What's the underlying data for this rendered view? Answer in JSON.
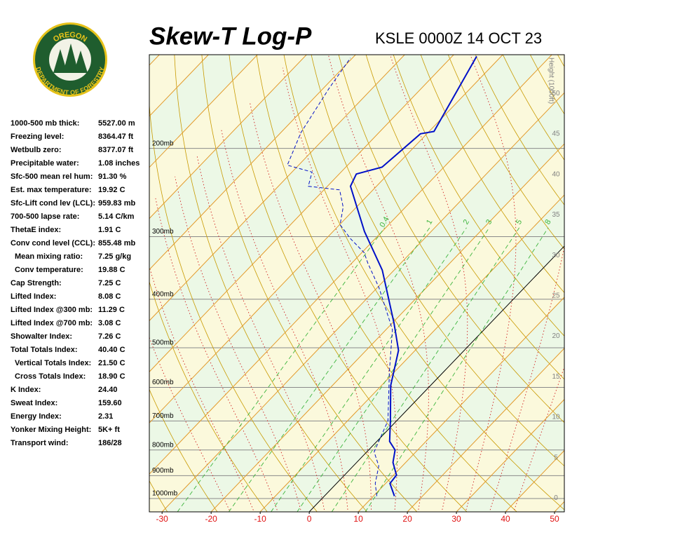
{
  "logo": {
    "top": "OREGON",
    "bottom": "DEPARTMENT OF FORESTRY"
  },
  "indices": [
    {
      "label": "1000-500 mb thick:",
      "value": "5527.00 m"
    },
    {
      "label": "Freezing level:",
      "value": "8364.47 ft"
    },
    {
      "label": "Wetbulb zero:",
      "value": "8377.07 ft"
    },
    {
      "label": "Precipitable water:",
      "value": "1.08 inches"
    },
    {
      "label": "Sfc-500 mean rel hum:",
      "value": "91.30 %"
    },
    {
      "label": "Est. max temperature:",
      "value": "19.92 C"
    },
    {
      "label": "Sfc-Lift cond lev (LCL):",
      "value": "959.83 mb"
    },
    {
      "label": "700-500 lapse rate:",
      "value": "5.14 C/km"
    },
    {
      "label": "ThetaE index:",
      "value": "1.91 C"
    },
    {
      "label": "Conv cond level (CCL):",
      "value": "855.48 mb"
    },
    {
      "label": "Mean mixing ratio:",
      "value": "7.25 g/kg"
    },
    {
      "label": "Conv temperature:",
      "value": "19.88 C"
    },
    {
      "label": "Cap Strength:",
      "value": "7.25 C"
    },
    {
      "label": "Lifted Index:",
      "value": "8.08 C"
    },
    {
      "label": "Lifted Index @300 mb:",
      "value": "11.29 C"
    },
    {
      "label": "Lifted Index @700 mb:",
      "value": "3.08 C"
    },
    {
      "label": "Showalter Index:",
      "value": "7.26 C"
    },
    {
      "label": "Total Totals Index:",
      "value": "40.40 C"
    },
    {
      "label": "Vertical Totals Index:",
      "value": "21.50 C"
    },
    {
      "label": "Cross Totals Index:",
      "value": "18.90 C"
    },
    {
      "label": "K Index:",
      "value": "24.40"
    },
    {
      "label": "Sweat Index:",
      "value": "159.60"
    },
    {
      "label": "Energy Index:",
      "value": "2.31"
    },
    {
      "label": "Yonker Mixing Height:",
      "value": "5K+ ft"
    },
    {
      "label": "Transport wind:",
      "value": "186/28"
    }
  ],
  "chart_data": {
    "type": "skewt",
    "title": "Skew-T Log-P",
    "subtitle": "KSLE 0000Z 14 OCT 23",
    "y2_label": "Height (1000ft)",
    "xlim": [
      -32.6,
      52
    ],
    "xticks": [
      -30,
      -20,
      -10,
      0,
      10,
      20,
      30,
      40,
      50
    ],
    "ylim": [
      1063,
      130
    ],
    "yticks": [
      {
        "value": 200,
        "label": "200mb"
      },
      {
        "value": 300,
        "label": "300mb"
      },
      {
        "value": 400,
        "label": "400mb"
      },
      {
        "value": 500,
        "label": "500mb"
      },
      {
        "value": 600,
        "label": "600mb"
      },
      {
        "value": 700,
        "label": "700mb"
      },
      {
        "value": 800,
        "label": "800mb"
      },
      {
        "value": 900,
        "label": "900mb"
      },
      {
        "value": 1000,
        "label": "1000mb"
      }
    ],
    "y2lim": [
      -1.7,
      54.8
    ],
    "y2ticks": [
      0,
      5,
      10,
      15,
      20,
      25,
      30,
      35,
      40,
      45,
      50
    ],
    "mixing_ratios": [
      0.4,
      1,
      2,
      3,
      5,
      8
    ],
    "series": [
      {
        "color": "#0010c8",
        "style": "solid",
        "p": [
          989,
          933,
          898,
          847,
          800,
          769,
          699,
          595,
          506,
          446,
          350,
          293,
          238,
          225,
          218,
          187,
          185,
          131
        ],
        "t": [
          14.3,
          10.9,
          10.6,
          7.4,
          5.4,
          2.6,
          -1.3,
          -8.1,
          -13.4,
          -19.7,
          -32.4,
          -43.6,
          -55.3,
          -56.5,
          -52.6,
          -51.3,
          -49,
          -55
        ]
      },
      {
        "color": "#0010c8",
        "style": "dashed",
        "p": [
          989,
          933,
          861,
          807,
          699,
          558,
          460,
          379,
          339,
          323,
          303,
          284,
          262,
          242,
          238,
          223,
          216,
          186,
          152,
          132
        ],
        "t": [
          10.7,
          7.9,
          5.2,
          1.5,
          -1.8,
          -11.1,
          -18.7,
          -29.7,
          -36.7,
          -39.5,
          -45,
          -49.9,
          -52.7,
          -56.8,
          -63.9,
          -65.9,
          -72.3,
          -75.9,
          -78.8,
          -80.4
        ]
      }
    ]
  }
}
